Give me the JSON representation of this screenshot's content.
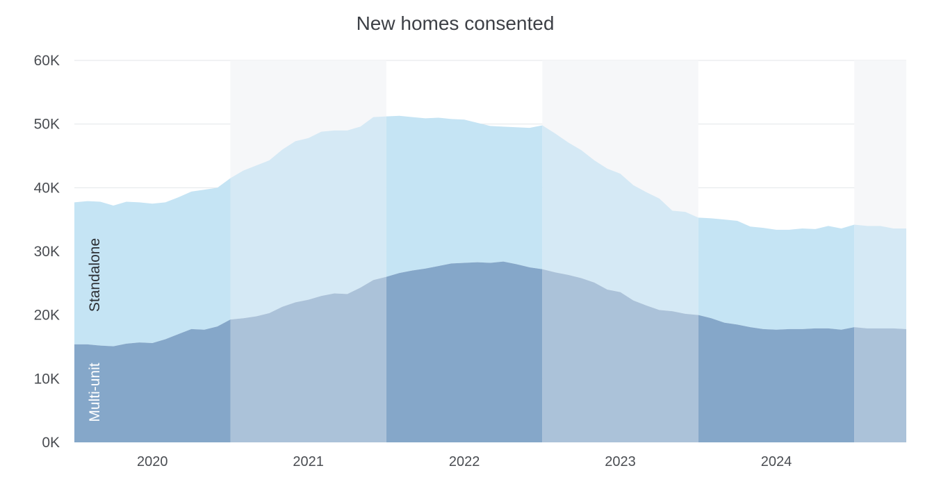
{
  "chart_data": {
    "type": "area",
    "stacked": true,
    "title": "New homes consented",
    "xlabel": "",
    "ylabel": "",
    "ylim": [
      0,
      60000
    ],
    "y_ticks": [
      {
        "value": 0,
        "label": "0K"
      },
      {
        "value": 10000,
        "label": "10K"
      },
      {
        "value": 20000,
        "label": "20K"
      },
      {
        "value": 30000,
        "label": "30K"
      },
      {
        "value": 40000,
        "label": "40K"
      },
      {
        "value": 50000,
        "label": "50K"
      },
      {
        "value": 60000,
        "label": "60K"
      }
    ],
    "xlim": [
      "2019-07",
      "2024-11"
    ],
    "x_ticks": [
      "2020",
      "2021",
      "2022",
      "2023",
      "2024"
    ],
    "year_bands": [
      {
        "from": "2019-07",
        "to": "2020-07",
        "shade": "dark"
      },
      {
        "from": "2020-07",
        "to": "2021-07",
        "shade": "light"
      },
      {
        "from": "2021-07",
        "to": "2022-07",
        "shade": "dark"
      },
      {
        "from": "2022-07",
        "to": "2023-07",
        "shade": "light"
      },
      {
        "from": "2023-07",
        "to": "2024-07",
        "shade": "dark"
      },
      {
        "from": "2024-07",
        "to": "2024-11",
        "shade": "light"
      }
    ],
    "grid": true,
    "x": [
      "2019-07",
      "2019-08",
      "2019-09",
      "2019-10",
      "2019-11",
      "2019-12",
      "2020-01",
      "2020-02",
      "2020-03",
      "2020-04",
      "2020-05",
      "2020-06",
      "2020-07",
      "2020-08",
      "2020-09",
      "2020-10",
      "2020-11",
      "2020-12",
      "2021-01",
      "2021-02",
      "2021-03",
      "2021-04",
      "2021-05",
      "2021-06",
      "2021-07",
      "2021-08",
      "2021-09",
      "2021-10",
      "2021-11",
      "2021-12",
      "2022-01",
      "2022-02",
      "2022-03",
      "2022-04",
      "2022-05",
      "2022-06",
      "2022-07",
      "2022-08",
      "2022-09",
      "2022-10",
      "2022-11",
      "2022-12",
      "2023-01",
      "2023-02",
      "2023-03",
      "2023-04",
      "2023-05",
      "2023-06",
      "2023-07",
      "2023-08",
      "2023-09",
      "2023-10",
      "2023-11",
      "2023-12",
      "2024-01",
      "2024-02",
      "2024-03",
      "2024-04",
      "2024-05",
      "2024-06",
      "2024-07",
      "2024-08",
      "2024-09",
      "2024-10",
      "2024-11"
    ],
    "series": [
      {
        "name": "Multi-unit",
        "color_dark": "#85a7c9",
        "color_light": "#abc2d9",
        "values": [
          15400,
          15400,
          15200,
          15100,
          15500,
          15700,
          15600,
          16200,
          17000,
          17800,
          17700,
          18200,
          19300,
          19500,
          19800,
          20300,
          21300,
          22000,
          22400,
          23000,
          23400,
          23300,
          24300,
          25500,
          26000,
          26600,
          27000,
          27300,
          27700,
          28100,
          28200,
          28300,
          28200,
          28400,
          28000,
          27500,
          27200,
          26700,
          26300,
          25800,
          25100,
          24000,
          23600,
          22300,
          21500,
          20800,
          20600,
          20200,
          20000,
          19500,
          18800,
          18500,
          18100,
          17800,
          17700,
          17800,
          17800,
          17900,
          17900,
          17700,
          18100,
          17900,
          17900,
          17900,
          17800
        ]
      },
      {
        "name": "Standalone",
        "color_dark": "#c5e4f4",
        "color_light": "#d5e9f5",
        "values": [
          22300,
          22500,
          22600,
          22100,
          22300,
          22000,
          21900,
          21500,
          21500,
          21600,
          22000,
          21800,
          22200,
          23200,
          23700,
          24000,
          24700,
          25300,
          25400,
          25800,
          25600,
          25700,
          25300,
          25600,
          25200,
          24700,
          24100,
          23600,
          23300,
          22700,
          22500,
          21900,
          21500,
          21200,
          21500,
          21900,
          22600,
          21800,
          20800,
          20100,
          19200,
          19000,
          18600,
          18100,
          17800,
          17500,
          15800,
          16000,
          15300,
          15700,
          16200,
          16300,
          15800,
          15900,
          15700,
          15600,
          15800,
          15600,
          16100,
          15900,
          16100,
          16100,
          16100,
          15700,
          15800
        ]
      }
    ]
  }
}
